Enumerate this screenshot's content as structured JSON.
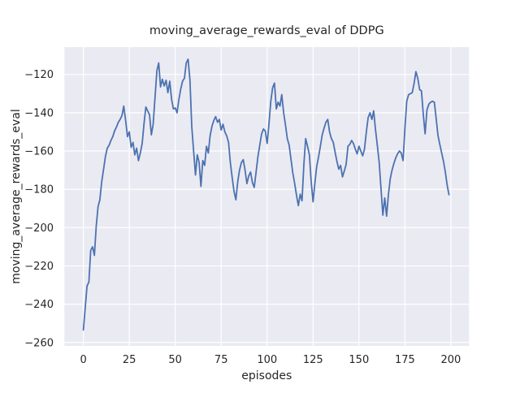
{
  "title": "moving_average_rewards_eval of DDPG",
  "chart_data": {
    "type": "line",
    "title": "moving_average_rewards_eval of DDPG",
    "xlabel": "episodes",
    "ylabel": "moving_average_rewards_eval",
    "x_start": 0,
    "x_step": 1,
    "values": [
      -253.5,
      -242,
      -230.5,
      -228.5,
      -212,
      -210,
      -214.5,
      -199.5,
      -189,
      -185.5,
      -176,
      -169.5,
      -163,
      -158.5,
      -157,
      -154.5,
      -152.5,
      -149.5,
      -147.5,
      -145,
      -143.5,
      -141.5,
      -136.5,
      -144,
      -152.5,
      -150,
      -158,
      -155.5,
      -162,
      -158.5,
      -165,
      -161,
      -156,
      -146,
      -137,
      -139,
      -141,
      -151.5,
      -146,
      -132,
      -118,
      -114,
      -126.5,
      -122.5,
      -126,
      -123,
      -129.5,
      -123.5,
      -133,
      -138,
      -137.5,
      -140,
      -133,
      -127.5,
      -123.5,
      -122,
      -114,
      -112,
      -123,
      -147,
      -160,
      -172.5,
      -162,
      -166,
      -178.5,
      -165,
      -167.5,
      -157.5,
      -161,
      -152,
      -147,
      -144,
      -142,
      -145,
      -143.5,
      -149,
      -146,
      -150,
      -152,
      -155.5,
      -166,
      -174,
      -181,
      -185.5,
      -176,
      -170,
      -166,
      -164.5,
      -170,
      -177,
      -173,
      -171,
      -176.5,
      -179,
      -171,
      -163,
      -157,
      -151,
      -148.5,
      -149.5,
      -156,
      -146,
      -134,
      -127,
      -124.5,
      -138,
      -134.5,
      -136.5,
      -130.5,
      -140,
      -146.5,
      -153.5,
      -157,
      -164.5,
      -171.5,
      -177,
      -183,
      -188.5,
      -182.5,
      -186,
      -167,
      -153.5,
      -157.5,
      -162,
      -176,
      -186.5,
      -176.5,
      -168,
      -163,
      -157.5,
      -151.5,
      -148,
      -145,
      -143.5,
      -150,
      -153.5,
      -155.5,
      -160.5,
      -165.5,
      -169.5,
      -167.5,
      -173.5,
      -170.5,
      -167,
      -157.5,
      -156.5,
      -154.5,
      -156,
      -159,
      -161.5,
      -157.5,
      -160,
      -162.5,
      -159,
      -150,
      -142.5,
      -140,
      -143.5,
      -139,
      -149,
      -157,
      -166,
      -180,
      -193.5,
      -184.5,
      -194,
      -183,
      -174.5,
      -170,
      -166.5,
      -163.5,
      -161.5,
      -160,
      -161,
      -165,
      -148,
      -134,
      -130.5,
      -130,
      -129.5,
      -124.5,
      -118.5,
      -122,
      -128,
      -128.5,
      -141,
      -151,
      -138.5,
      -135.5,
      -134.5,
      -134,
      -134.5,
      -143,
      -152,
      -156.5,
      -161,
      -165.5,
      -171,
      -178,
      -182.8
    ],
    "xticks": [
      0,
      25,
      50,
      75,
      100,
      125,
      150,
      175,
      200
    ],
    "yticks": [
      -120,
      -140,
      -160,
      -180,
      -200,
      -220,
      -240,
      -260
    ],
    "xlim": [
      -10.3,
      209.9
    ],
    "ylim": [
      -261.8,
      -105.7
    ],
    "grid": true,
    "legend_position": "none",
    "line_color": "#4C72B0",
    "axes_bg": "#EAEAF2",
    "grid_color": "#FFFFFF",
    "text_color": "#262626",
    "figure_bg": "#FFFFFF"
  }
}
